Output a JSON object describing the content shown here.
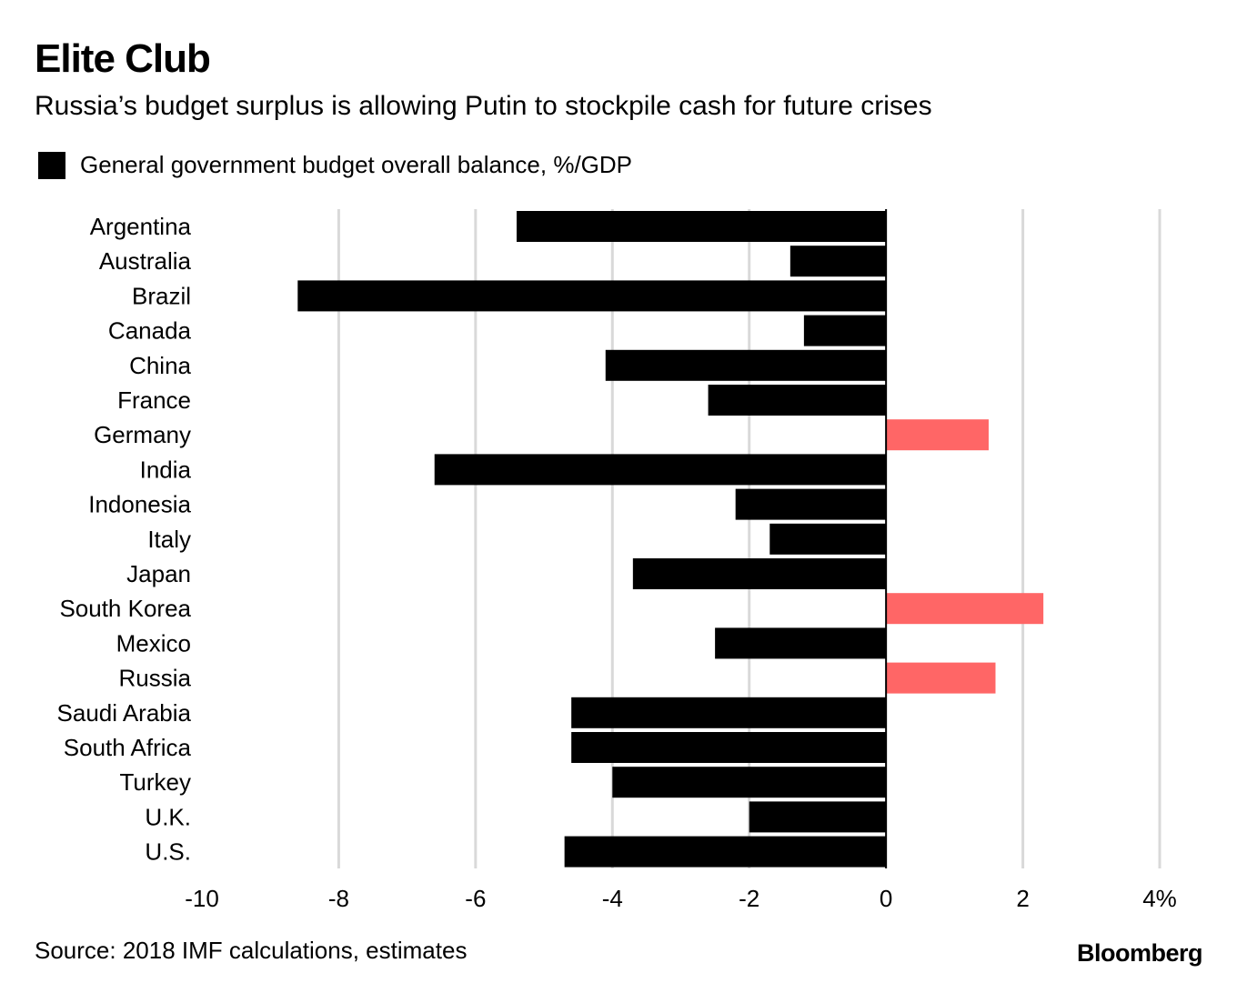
{
  "title": "Elite Club",
  "subtitle": "Russia’s budget surplus is allowing Putin to stockpile cash for future crises",
  "legend": {
    "label": "General government budget overall balance, %/GDP",
    "color": "#000000"
  },
  "source": "Source: 2018 IMF calculations, estimates",
  "brand": "Bloomberg",
  "colors": {
    "deficit": "#000000",
    "surplus": "#ff6666",
    "grid": "#d9d9d9",
    "zero_axis": "#000000"
  },
  "chart_data": {
    "type": "bar",
    "orientation": "horizontal",
    "categories": [
      "Argentina",
      "Australia",
      "Brazil",
      "Canada",
      "China",
      "France",
      "Germany",
      "India",
      "Indonesia",
      "Italy",
      "Japan",
      "South Korea",
      "Mexico",
      "Russia",
      "Saudi Arabia",
      "South Africa",
      "Turkey",
      "U.K.",
      "U.S."
    ],
    "series": [
      {
        "values": [
          -5.4,
          -1.4,
          -8.6,
          -1.2,
          -4.1,
          -2.6,
          1.5,
          -6.6,
          -2.2,
          -1.7,
          -3.7,
          2.3,
          -2.5,
          1.6,
          -4.6,
          -4.6,
          -4.0,
          -2.0,
          -4.7
        ]
      }
    ],
    "xlim": [
      -10,
      4
    ],
    "xticks": [
      -10,
      -8,
      -6,
      -4,
      -2,
      0,
      2,
      4
    ],
    "xtick_labels": [
      "-10",
      "-8",
      "-6",
      "-4",
      "-2",
      "0",
      "2",
      "4%"
    ],
    "grid": true,
    "legend_position": "top-left"
  }
}
